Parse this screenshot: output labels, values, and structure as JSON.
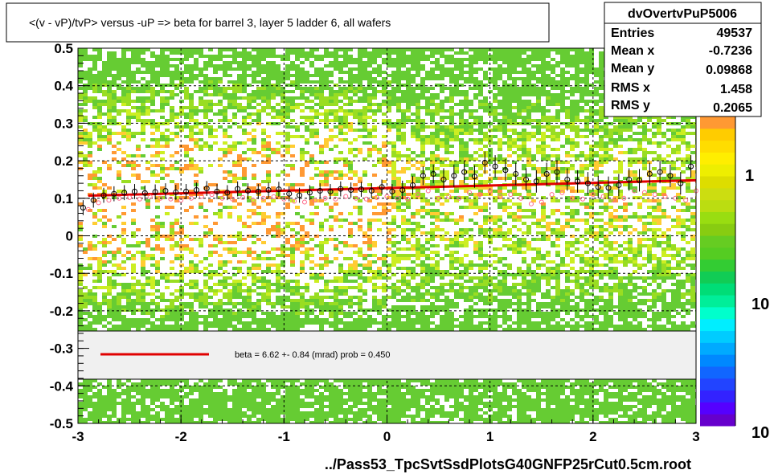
{
  "chart_data": {
    "type": "scatter",
    "title": "<(v - vP)/tvP> versus  -uP => beta for barrel 3, layer 5 ladder 6, all wafers",
    "xlabel": "../Pass53_TpcSvtSsdPlotsG40GNFP25rCut0.5cm.root",
    "ylabel": "",
    "xlim": [
      -3,
      3
    ],
    "ylim": [
      -0.5,
      0.5
    ],
    "x_ticks": [
      "-3",
      "-2",
      "-1",
      "0",
      "1",
      "2",
      "3"
    ],
    "y_ticks": [
      "-0.5",
      "-0.4",
      "-0.3",
      "-0.2",
      "-0.1",
      "0",
      "0.1",
      "0.2",
      "0.3",
      "0.4",
      "0.5"
    ],
    "grid": true,
    "fit_line": {
      "x": [
        -2.9,
        3.0
      ],
      "y": [
        0.107,
        0.148
      ],
      "color": "#e00000"
    },
    "series": [
      {
        "x": [
          -2.95,
          -2.85,
          -2.75,
          -2.65,
          -2.55,
          -2.45,
          -2.35,
          -2.25,
          -2.15,
          -2.05,
          -1.95,
          -1.85,
          -1.75,
          -1.65,
          -1.55,
          -1.45,
          -1.35,
          -1.25,
          -1.15,
          -1.05,
          -0.95,
          -0.85,
          -0.75,
          -0.65,
          -0.55,
          -0.45,
          -0.35,
          -0.25,
          -0.15,
          -0.05,
          0.05,
          0.15,
          0.25,
          0.35,
          0.45,
          0.55,
          0.65,
          0.75,
          0.85,
          0.95,
          1.05,
          1.15,
          1.25,
          1.35,
          1.45,
          1.55,
          1.65,
          1.75,
          1.85,
          1.95,
          2.05,
          2.15,
          2.25,
          2.35,
          2.45,
          2.55,
          2.65,
          2.75,
          2.85,
          2.95
        ],
        "y": [
          0.075,
          0.095,
          0.108,
          0.112,
          0.115,
          0.118,
          0.114,
          0.117,
          0.12,
          0.116,
          0.118,
          0.122,
          0.126,
          0.118,
          0.115,
          0.125,
          0.12,
          0.118,
          0.122,
          0.124,
          0.112,
          0.108,
          0.115,
          0.12,
          0.118,
          0.125,
          0.122,
          0.124,
          0.12,
          0.13,
          0.118,
          0.122,
          0.135,
          0.16,
          0.165,
          0.15,
          0.16,
          0.17,
          0.158,
          0.195,
          0.185,
          0.175,
          0.165,
          0.15,
          0.145,
          0.165,
          0.17,
          0.15,
          0.145,
          0.14,
          0.13,
          0.128,
          0.135,
          0.15,
          0.148,
          0.165,
          0.17,
          0.16,
          0.14,
          0.185
        ],
        "yerr": [
          0.02,
          0.02,
          0.02,
          0.02,
          0.02,
          0.02,
          0.02,
          0.02,
          0.02,
          0.02,
          0.02,
          0.02,
          0.02,
          0.02,
          0.02,
          0.02,
          0.02,
          0.02,
          0.02,
          0.02,
          0.02,
          0.02,
          0.02,
          0.02,
          0.02,
          0.02,
          0.02,
          0.02,
          0.02,
          0.02,
          0.02,
          0.025,
          0.025,
          0.025,
          0.025,
          0.03,
          0.03,
          0.03,
          0.03,
          0.03,
          0.03,
          0.03,
          0.03,
          0.03,
          0.03,
          0.03,
          0.03,
          0.03,
          0.03,
          0.03,
          0.03,
          0.03,
          0.03,
          0.03,
          0.03,
          0.03,
          0.03,
          0.03,
          0.03,
          0.03
        ],
        "marker": "open-circle-black"
      },
      {
        "x": [
          -2.9,
          -2.8,
          -2.7,
          -2.6,
          -2.5,
          -2.4,
          -2.3,
          -2.2,
          -2.1,
          -2.0,
          -1.9,
          -1.8,
          -1.7,
          -1.6,
          -1.5,
          -1.4,
          -1.3,
          -1.2,
          -1.1,
          -1.0,
          -0.9,
          -0.8,
          -0.7,
          -0.6,
          -0.5,
          -0.4,
          -0.3,
          -0.2,
          -0.1,
          0.0,
          0.1,
          0.2,
          0.3,
          0.4,
          0.5,
          0.6,
          0.7,
          0.8,
          0.9,
          1.0,
          1.1,
          1.2,
          1.3,
          1.4,
          1.5,
          1.6,
          1.7,
          1.8,
          1.9,
          2.0,
          2.1,
          2.2,
          2.3,
          2.4,
          2.5,
          2.6,
          2.7,
          2.8,
          2.9,
          3.0
        ],
        "y": [
          0.07,
          0.088,
          0.095,
          0.1,
          0.102,
          0.098,
          0.104,
          0.1,
          0.098,
          0.095,
          0.1,
          0.105,
          0.11,
          0.1,
          0.098,
          0.102,
          0.095,
          0.1,
          0.104,
          0.098,
          0.092,
          0.09,
          0.095,
          0.1,
          0.098,
          0.105,
          0.1,
          0.098,
          0.102,
          0.105,
          0.1,
          0.098,
          0.11,
          0.12,
          0.1,
          0.105,
          0.1,
          0.115,
          0.11,
          0.12,
          0.105,
          0.11,
          0.1,
          0.085,
          0.09,
          0.11,
          0.115,
          0.1,
          0.098,
          0.11,
          0.105,
          0.095,
          0.1,
          0.12,
          0.115,
          0.11,
          0.105,
          0.1,
          0.095,
          0.12
        ],
        "marker": "open-circle-pink"
      }
    ]
  },
  "stats": {
    "name": "dvOvertvPuP5006",
    "rows": [
      {
        "label": "Entries",
        "value": "49537"
      },
      {
        "label": "Mean x",
        "value": "-0.7236"
      },
      {
        "label": "Mean y",
        "value": "0.09868"
      },
      {
        "label": "RMS x",
        "value": "1.458"
      },
      {
        "label": "RMS y",
        "value": "0.2065"
      }
    ]
  },
  "legend": {
    "fit_label": "beta =    6.62 +-  0.84 (mrad) prob = 0.450"
  },
  "z_axis": {
    "labels": [
      "1",
      "10",
      "10"
    ]
  }
}
